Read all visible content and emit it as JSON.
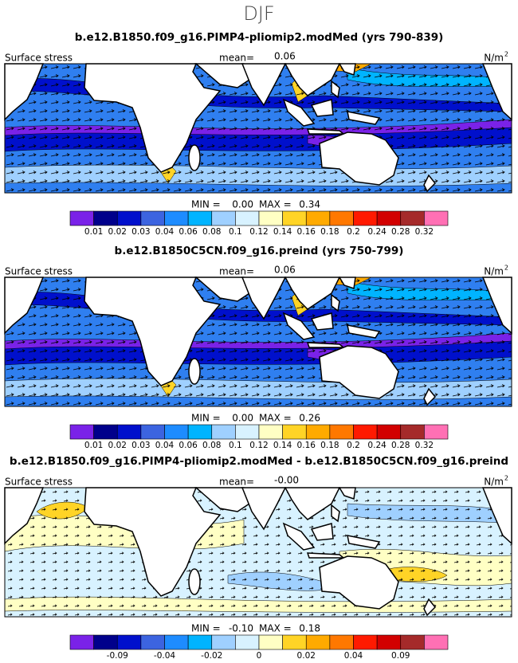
{
  "title": "DJF",
  "panels": [
    {
      "title": "b.e12.B1850.f09_g16.PIMP4-pliomip2.modMed (yrs 790-839)",
      "field_label": "Surface stress",
      "mean_label": "mean=",
      "mean": "0.06",
      "units": "N/m",
      "units_exp": "2",
      "min_label": "MIN =",
      "min": "0.00",
      "max_label": "MAX =",
      "max": "0.34",
      "colorbar": {
        "colors": [
          "#7a22e8",
          "#00008b",
          "#0010cc",
          "#3c64e0",
          "#1e8cff",
          "#00b4ff",
          "#9fd0ff",
          "#d8f2ff",
          "#ffffc4",
          "#ffd426",
          "#ffaa00",
          "#ff7800",
          "#ff1a00",
          "#d20000",
          "#a52a2a",
          "#ff70b4"
        ],
        "labels": [
          "0.01",
          "0.02",
          "0.03",
          "0.04",
          "0.06",
          "0.08",
          "0.1",
          "0.12",
          "0.14",
          "0.16",
          "0.18",
          "0.2",
          "0.24",
          "0.28",
          "0.32"
        ]
      }
    },
    {
      "title": "b.e12.B1850C5CN.f09_g16.preind (yrs 750-799)",
      "field_label": "Surface stress",
      "mean_label": "mean=",
      "mean": "0.06",
      "units": "N/m",
      "units_exp": "2",
      "min_label": "MIN =",
      "min": "0.00",
      "max_label": "MAX =",
      "max": "0.26",
      "colorbar": {
        "colors": [
          "#7a22e8",
          "#00008b",
          "#0010cc",
          "#3c64e0",
          "#1e8cff",
          "#00b4ff",
          "#9fd0ff",
          "#d8f2ff",
          "#ffffc4",
          "#ffd426",
          "#ffaa00",
          "#ff7800",
          "#ff1a00",
          "#d20000",
          "#a52a2a",
          "#ff70b4"
        ],
        "labels": [
          "0.01",
          "0.02",
          "0.03",
          "0.04",
          "0.06",
          "0.08",
          "0.1",
          "0.12",
          "0.14",
          "0.16",
          "0.18",
          "0.2",
          "0.24",
          "0.28",
          "0.32"
        ]
      }
    },
    {
      "title": "b.e12.B1850.f09_g16.PIMP4-pliomip2.modMed - b.e12.B1850C5CN.f09_g16.preind",
      "field_label": "Surface stress",
      "mean_label": "mean=",
      "mean": "-0.00",
      "units": "N/m",
      "units_exp": "2",
      "min_label": "MIN =",
      "min": "-0.10",
      "max_label": "MAX =",
      "max": "0.18",
      "colorbar": {
        "colors": [
          "#7a22e8",
          "#00008b",
          "#0010cc",
          "#3c64e0",
          "#1e8cff",
          "#00b4ff",
          "#9fd0ff",
          "#d8f2ff",
          "#ffffc4",
          "#ffd426",
          "#ffaa00",
          "#ff7800",
          "#ff1a00",
          "#d20000",
          "#a52a2a",
          "#ff70b4"
        ],
        "labels": [
          null,
          "-0.09",
          null,
          "-0.04",
          null,
          "-0.02",
          null,
          "0",
          null,
          "0.02",
          null,
          "0.04",
          null,
          "0.09",
          null
        ]
      }
    }
  ]
}
